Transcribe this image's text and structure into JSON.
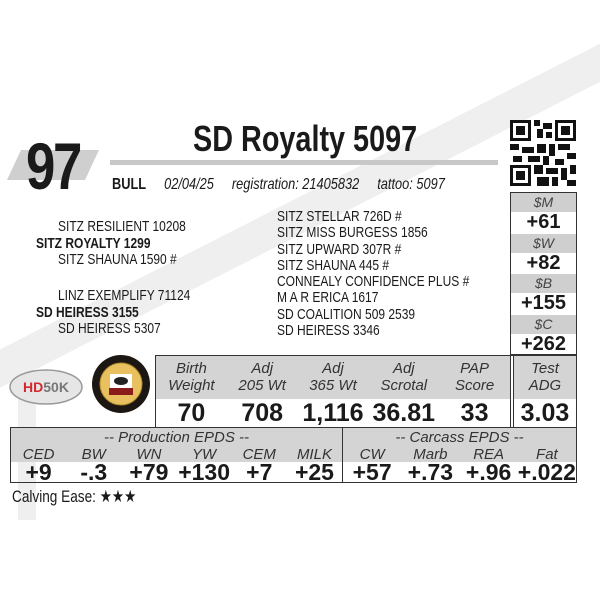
{
  "lot": "97",
  "title": "SD Royalty 5097",
  "info": {
    "sex": "BULL",
    "birth_date": "02/04/25",
    "registration": "registration:  21405832",
    "tattoo": "tattoo: 5097"
  },
  "pedigree": {
    "sire_sire": "SITZ RESILIENT 10208",
    "sire": "SITZ ROYALTY 1299",
    "sire_dam": "SITZ SHAUNA 1590 #",
    "dam_sire": "LINZ EXEMPLIFY 71124",
    "dam": "SD HEIRESS 3155",
    "dam_dam": "SD HEIRESS 5307",
    "third": [
      "SITZ STELLAR 726D #",
      "SITZ MISS BURGESS 1856",
      "SITZ UPWARD 307R #",
      "SITZ SHAUNA 445 #",
      "CONNEALY CONFIDENCE PLUS #",
      "M A R ERICA 1617",
      "SD COALITION 509 2539",
      "SD HEIRESS 3346"
    ]
  },
  "indexes": [
    {
      "label": "$M",
      "value": "+61"
    },
    {
      "label": "$W",
      "value": "+82"
    },
    {
      "label": "$B",
      "value": "+155"
    },
    {
      "label": "$C",
      "value": "+262"
    }
  ],
  "logos": {
    "hd50k": "HD50K",
    "certified": "Certified Angus Beef"
  },
  "performance": [
    {
      "l1": "Birth",
      "l2": "Weight",
      "value": "70"
    },
    {
      "l1": "Adj",
      "l2": "205 Wt",
      "value": "708"
    },
    {
      "l1": "Adj",
      "l2": "365 Wt",
      "value": "1,116"
    },
    {
      "l1": "Adj",
      "l2": "Scrotal",
      "value": "36.81"
    },
    {
      "l1": "PAP",
      "l2": "Score",
      "value": "33"
    },
    {
      "l1": "Test",
      "l2": "ADG",
      "value": "3.03"
    }
  ],
  "production": {
    "title": "-- Production EPDS --",
    "items": [
      {
        "label": "CED",
        "value": "+9"
      },
      {
        "label": "BW",
        "value": "-.3"
      },
      {
        "label": "WN",
        "value": "+79"
      },
      {
        "label": "YW",
        "value": "+130"
      },
      {
        "label": "CEM",
        "value": "+7"
      },
      {
        "label": "MILK",
        "value": "+25"
      }
    ]
  },
  "carcass": {
    "title": "-- Carcass EPDS --",
    "items": [
      {
        "label": "CW",
        "value": "+57"
      },
      {
        "label": "Marb",
        "value": "+.73"
      },
      {
        "label": "REA",
        "value": "+.96"
      },
      {
        "label": "Fat",
        "value": "+.022"
      }
    ]
  },
  "calving": {
    "label": "Calving Ease:",
    "stars": 3,
    "stars_text": "★★★"
  }
}
